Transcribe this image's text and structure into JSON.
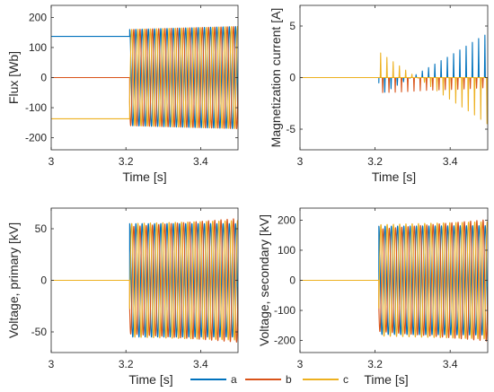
{
  "colors": {
    "a": "#0072BD",
    "b": "#D95319",
    "c": "#EDB120",
    "axis": "#262626"
  },
  "legend": [
    {
      "key": "a",
      "label": "a"
    },
    {
      "key": "b",
      "label": "b"
    },
    {
      "key": "c",
      "label": "c"
    }
  ],
  "chart_data": [
    {
      "type": "line",
      "title": "",
      "xlabel": "Time [s]",
      "ylabel": "Flux [Wb]",
      "xlim": [
        3,
        3.5
      ],
      "ylim": [
        -240,
        240
      ],
      "xticks": [
        3,
        3.2,
        3.4
      ],
      "xtick_labels": [
        "3",
        "3.2",
        "3.4"
      ],
      "yticks": [
        200,
        100,
        0,
        -100,
        -200
      ],
      "ytick_labels": [
        "200",
        "100",
        "0",
        "-100",
        "-200"
      ],
      "switch_time": 3.21,
      "frequency_hz": 60,
      "series": [
        {
          "key": "a",
          "pre_switch_value": 137,
          "amplitude_start": 160,
          "amplitude_end": 170
        },
        {
          "key": "b",
          "pre_switch_value": 0,
          "amplitude_start": 160,
          "amplitude_end": 170
        },
        {
          "key": "c",
          "pre_switch_value": -137,
          "amplitude_start": 160,
          "amplitude_end": 170
        }
      ]
    },
    {
      "type": "line",
      "title": "",
      "xlabel": "Time [s]",
      "ylabel": "Magnetization current [A]",
      "xlim": [
        3,
        3.5
      ],
      "ylim": [
        -7,
        7
      ],
      "xticks": [
        3,
        3.2,
        3.4
      ],
      "xtick_labels": [
        "3",
        "3.2",
        "3.4"
      ],
      "yticks": [
        5,
        0,
        -5
      ],
      "ytick_labels": [
        "5",
        "0",
        "-5"
      ],
      "switch_time": 3.21,
      "frequency_hz": 60,
      "series": [
        {
          "key": "a",
          "pre_switch_value": 0,
          "peak_start": -1.8,
          "peak_end": 4.3
        },
        {
          "key": "b",
          "pre_switch_value": 0,
          "peak_start": -1.5,
          "peak_end": -1.0
        },
        {
          "key": "c",
          "pre_switch_value": 0,
          "peak_start": 2.5,
          "peak_end": -4.6
        }
      ]
    },
    {
      "type": "line",
      "title": "",
      "xlabel": "Time [s]",
      "ylabel": "Voltage, primary [kV]",
      "xlim": [
        3,
        3.5
      ],
      "ylim": [
        -70,
        70
      ],
      "xticks": [
        3,
        3.2,
        3.4
      ],
      "xtick_labels": [
        "3",
        "3.2",
        "3.4"
      ],
      "yticks": [
        50,
        0,
        -50
      ],
      "ytick_labels": [
        "50",
        "0",
        "-50"
      ],
      "switch_time": 3.21,
      "frequency_hz": 60,
      "series": [
        {
          "key": "a",
          "pre_switch_value": 0,
          "amplitude_start": 55,
          "amplitude_end": 55
        },
        {
          "key": "b",
          "pre_switch_value": 0,
          "amplitude_start": 52,
          "amplitude_end": 60
        },
        {
          "key": "c",
          "pre_switch_value": 0,
          "amplitude_start": 55,
          "amplitude_end": 58
        }
      ]
    },
    {
      "type": "line",
      "title": "",
      "xlabel": "Time [s]",
      "ylabel": "Voltage, secondary [kV]",
      "xlim": [
        3,
        3.5
      ],
      "ylim": [
        -240,
        240
      ],
      "xticks": [
        3,
        3.2,
        3.4
      ],
      "xtick_labels": [
        "3",
        "3.2",
        "3.4"
      ],
      "yticks": [
        200,
        100,
        0,
        -100,
        -200
      ],
      "ytick_labels": [
        "200",
        "100",
        "0",
        "-100",
        "-200"
      ],
      "switch_time": 3.21,
      "frequency_hz": 60,
      "series": [
        {
          "key": "a",
          "pre_switch_value": 0,
          "amplitude_start": 180,
          "amplitude_end": 182
        },
        {
          "key": "b",
          "pre_switch_value": 0,
          "amplitude_start": 170,
          "amplitude_end": 202
        },
        {
          "key": "c",
          "pre_switch_value": 0,
          "amplitude_start": 185,
          "amplitude_end": 195
        }
      ]
    }
  ]
}
